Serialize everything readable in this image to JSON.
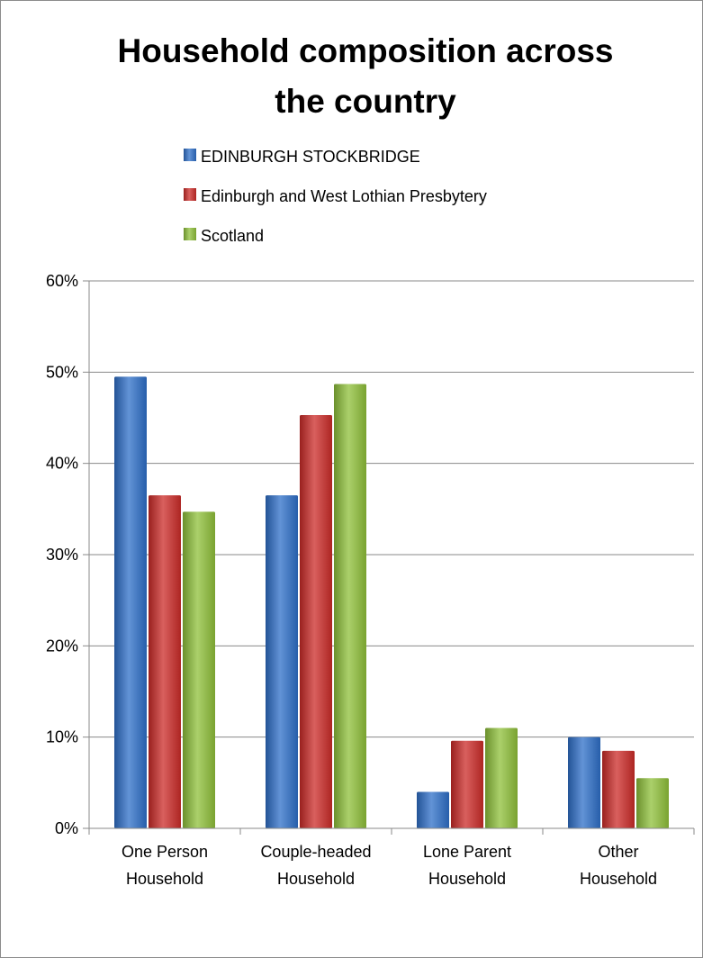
{
  "chart_data": {
    "type": "bar",
    "title_lines": [
      "Household composition across",
      "the country"
    ],
    "categories": [
      [
        "One Person",
        "Household"
      ],
      [
        "Couple-headed",
        "Household"
      ],
      [
        "Lone Parent",
        "Household"
      ],
      [
        "Other",
        "Household"
      ]
    ],
    "series": [
      {
        "name": "EDINBURGH STOCKBRIDGE",
        "color": "#2e6fc8",
        "values": [
          49.5,
          36.5,
          4.0,
          10.0
        ]
      },
      {
        "name": "Edinburgh and West Lothian Presbytery",
        "color": "#cc2b28",
        "values": [
          36.5,
          45.3,
          9.6,
          8.5
        ]
      },
      {
        "name": "Scotland",
        "color": "#8fc03a",
        "values": [
          34.7,
          48.7,
          11.0,
          5.5
        ]
      }
    ],
    "ylim": [
      0,
      60
    ],
    "yticks": [
      0,
      10,
      20,
      30,
      40,
      50,
      60
    ],
    "ytick_suffix": "%",
    "grid": true,
    "legend_position": "top-center"
  }
}
